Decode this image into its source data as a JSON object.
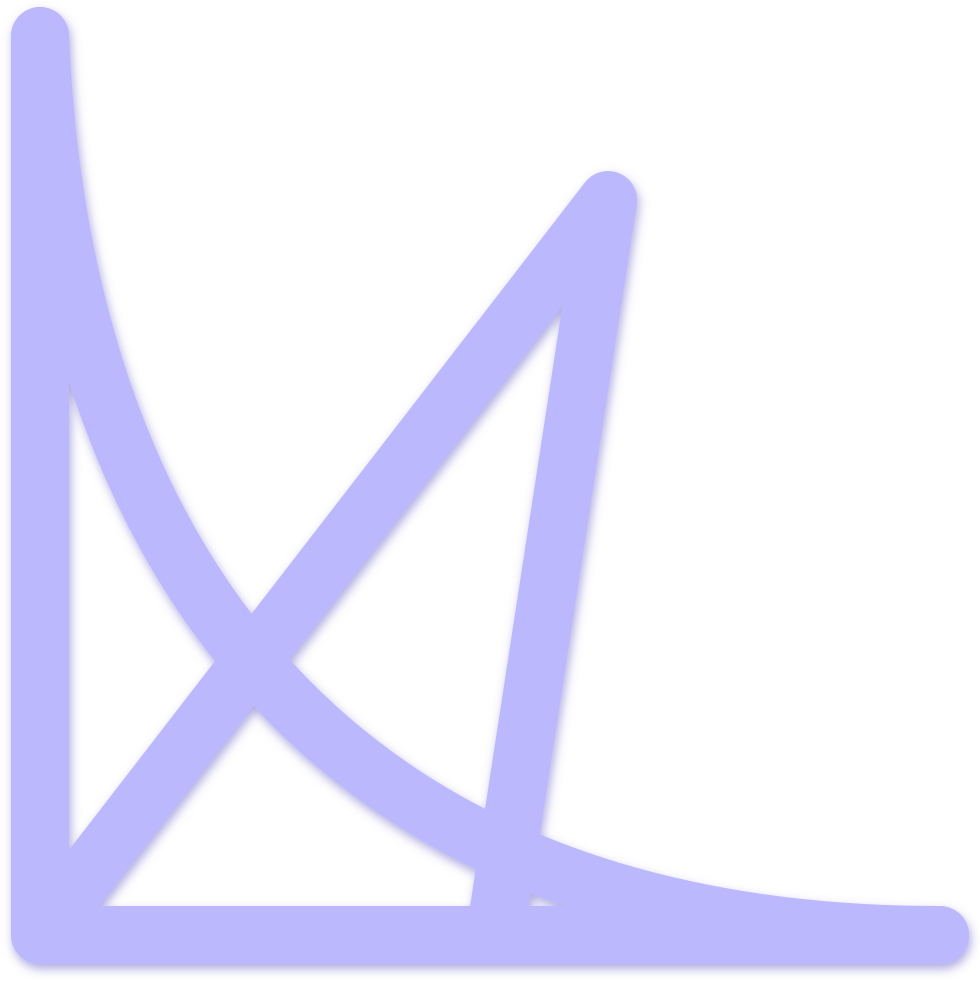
{
  "icon": {
    "name": "triangle-curve-axes-icon",
    "stroke_color": "#BBB8FD",
    "shadow_color": "#6E68C8",
    "background_color": "#FFFFFF"
  }
}
